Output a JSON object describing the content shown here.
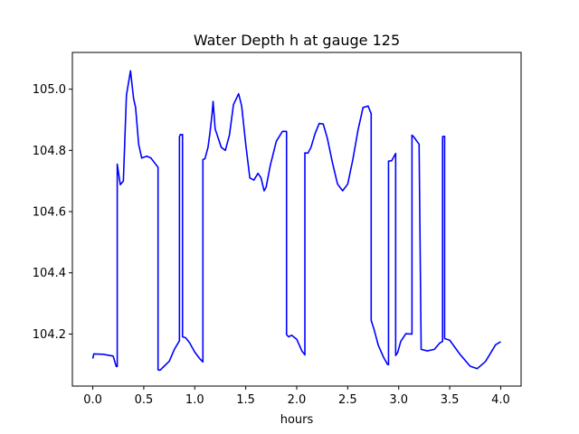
{
  "chart_data": {
    "type": "line",
    "title": "Water Depth h at gauge 125",
    "xlabel": "hours",
    "ylabel": "",
    "xlim": [
      -0.2,
      4.2
    ],
    "ylim": [
      104.03,
      105.12
    ],
    "xticks": [
      0.0,
      0.5,
      1.0,
      1.5,
      2.0,
      2.5,
      3.0,
      3.5,
      4.0
    ],
    "xtick_labels": [
      "0.0",
      "0.5",
      "1.0",
      "1.5",
      "2.0",
      "2.5",
      "3.0",
      "3.5",
      "4.0"
    ],
    "yticks": [
      104.2,
      104.4,
      104.6,
      104.8,
      105.0
    ],
    "ytick_labels": [
      "104.2",
      "104.4",
      "104.6",
      "104.8",
      "105.0"
    ],
    "grid": false,
    "legend": "none",
    "series": [
      {
        "color": "#0000ff",
        "x": [
          0.0,
          0.01,
          0.1,
          0.2,
          0.23,
          0.24,
          0.24,
          0.27,
          0.3,
          0.33,
          0.37,
          0.4,
          0.42,
          0.45,
          0.48,
          0.53,
          0.57,
          0.6,
          0.64,
          0.64,
          0.66,
          0.7,
          0.75,
          0.8,
          0.85,
          0.85,
          0.86,
          0.87,
          0.88,
          0.88,
          0.91,
          0.95,
          1.0,
          1.05,
          1.08,
          1.08,
          1.1,
          1.13,
          1.15,
          1.17,
          1.18,
          1.2,
          1.23,
          1.26,
          1.3,
          1.34,
          1.38,
          1.43,
          1.46,
          1.5,
          1.54,
          1.58,
          1.62,
          1.65,
          1.68,
          1.7,
          1.74,
          1.8,
          1.86,
          1.9,
          1.9,
          1.92,
          1.95,
          2.0,
          2.05,
          2.08,
          2.08,
          2.11,
          2.14,
          2.18,
          2.22,
          2.26,
          2.3,
          2.35,
          2.4,
          2.45,
          2.5,
          2.55,
          2.6,
          2.65,
          2.7,
          2.73,
          2.73,
          2.76,
          2.8,
          2.85,
          2.89,
          2.9,
          2.9,
          2.93,
          2.97,
          2.97,
          2.99,
          3.02,
          3.07,
          3.12,
          3.13,
          3.13,
          3.15,
          3.2,
          3.2,
          3.22,
          3.28,
          3.35,
          3.4,
          3.43,
          3.43,
          3.45,
          3.45,
          3.45,
          3.5,
          3.6,
          3.7,
          3.77,
          3.85,
          3.95,
          4.0
        ],
        "y": [
          104.12,
          104.135,
          104.134,
          104.128,
          104.094,
          104.094,
          104.755,
          104.688,
          104.7,
          104.98,
          105.06,
          104.97,
          104.94,
          104.82,
          104.775,
          104.781,
          104.775,
          104.762,
          104.745,
          104.083,
          104.082,
          104.095,
          104.111,
          104.15,
          104.178,
          104.845,
          104.852,
          104.851,
          104.852,
          104.191,
          104.188,
          104.171,
          104.141,
          104.119,
          104.109,
          104.77,
          104.773,
          104.81,
          104.86,
          104.92,
          104.96,
          104.87,
          104.84,
          104.81,
          104.8,
          104.85,
          104.95,
          104.985,
          104.945,
          104.82,
          104.71,
          104.703,
          104.725,
          104.71,
          104.668,
          104.68,
          104.75,
          104.83,
          104.862,
          104.862,
          104.198,
          104.191,
          104.196,
          104.183,
          104.145,
          104.132,
          104.792,
          104.791,
          104.81,
          104.855,
          104.888,
          104.886,
          104.84,
          104.76,
          104.69,
          104.668,
          104.69,
          104.77,
          104.865,
          104.94,
          104.945,
          104.92,
          104.245,
          104.213,
          104.163,
          104.125,
          104.101,
          104.1,
          104.765,
          104.766,
          104.79,
          104.13,
          104.14,
          104.176,
          104.201,
          104.2,
          104.2,
          104.85,
          104.843,
          104.82,
          104.815,
          104.15,
          104.145,
          104.15,
          104.17,
          104.176,
          104.845,
          104.846,
          104.846,
          104.185,
          104.18,
          104.134,
          104.095,
          104.087,
          104.11,
          104.165,
          104.175
        ]
      }
    ]
  }
}
